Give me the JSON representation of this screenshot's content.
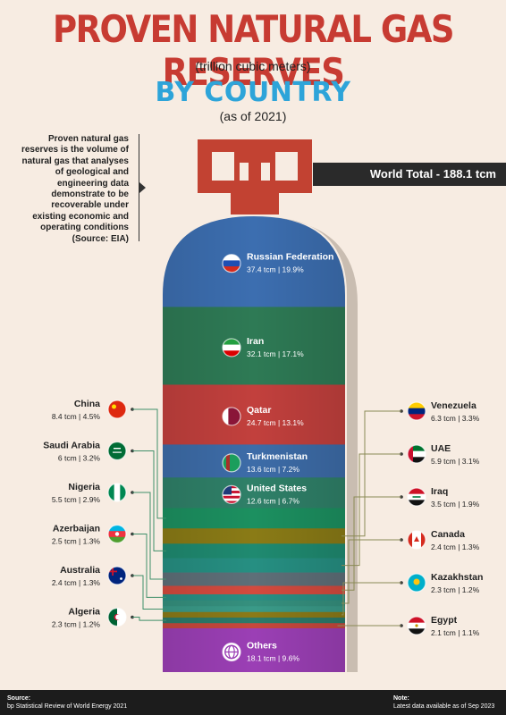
{
  "header": {
    "title": "PROVEN NATURAL GAS RESERVES",
    "unit": "(trillion cubic meters)",
    "subtitle": "BY COUNTRY",
    "date": "(as of 2021)"
  },
  "description": "Proven natural gas reserves is the volume of natural gas that analyses of geological and engineering data demonstrate to be recoverable under existing economic and operating conditions (Source: EIA)",
  "total_label": "World Total - 188.1 tcm",
  "footer": {
    "source_label": "Source:",
    "source_text": "bp Statistical Review of World Energy 2021",
    "note_label": "Note:",
    "note_text": "Latest data available as of Sep 2023"
  },
  "chart_data": {
    "type": "bar",
    "title": "PROVEN NATURAL GAS RESERVES",
    "unit": "trillion cubic meters",
    "total": 188.1,
    "segments": [
      {
        "name": "Russian Federation",
        "value": 37.4,
        "value_label": "37.4 tcm",
        "share": "19.9%",
        "color": "#3c6eb0",
        "label_side": "inside",
        "flag": "russia-flag-icon"
      },
      {
        "name": "Iran",
        "value": 32.1,
        "value_label": "32.1 tcm",
        "share": "17.1%",
        "color": "#2e7a55",
        "label_side": "inside",
        "flag": "iran-flag-icon"
      },
      {
        "name": "Qatar",
        "value": 24.7,
        "value_label": "24.7 tcm",
        "share": "13.1%",
        "color": "#c2403d",
        "label_side": "inside",
        "flag": "qatar-flag-icon"
      },
      {
        "name": "Turkmenistan",
        "value": 13.6,
        "value_label": "13.6 tcm",
        "share": "7.2%",
        "color": "#3d6ca8",
        "label_side": "inside",
        "flag": "turkmenistan-flag-icon"
      },
      {
        "name": "United States",
        "value": 12.6,
        "value_label": "12.6 tcm",
        "share": "6.7%",
        "color": "#2f8068",
        "label_side": "inside",
        "flag": "usa-flag-icon"
      },
      {
        "name": "China",
        "value": 8.4,
        "value_label": "8.4 tcm",
        "share": "4.5%",
        "color": "#1c9060",
        "label_side": "left",
        "flag": "china-flag-icon"
      },
      {
        "name": "Venezuela",
        "value": 6.3,
        "value_label": "6.3 tcm",
        "share": "3.3%",
        "color": "#8a7b16",
        "label_side": "right",
        "flag": "venezuela-flag-icon"
      },
      {
        "name": "Saudi Arabia",
        "value": 6.0,
        "value_label": "6 tcm",
        "share": "3.2%",
        "color": "#1f8a70",
        "label_side": "left",
        "flag": "saudi-arabia-flag-icon"
      },
      {
        "name": "UAE",
        "value": 5.9,
        "value_label": "5.9 tcm",
        "share": "3.1%",
        "color": "#268f82",
        "label_side": "right",
        "flag": "uae-flag-icon"
      },
      {
        "name": "Nigeria",
        "value": 5.5,
        "value_label": "5.5 tcm",
        "share": "2.9%",
        "color": "#5e6f78",
        "label_side": "left",
        "flag": "nigeria-flag-icon"
      },
      {
        "name": "Iraq",
        "value": 3.5,
        "value_label": "3.5 tcm",
        "share": "1.9%",
        "color": "#d44a3e",
        "label_side": "right",
        "flag": "iraq-flag-icon"
      },
      {
        "name": "Azerbaijan",
        "value": 2.5,
        "value_label": "2.5 tcm",
        "share": "1.3%",
        "color": "#2a8f84",
        "label_side": "left",
        "flag": "azerbaijan-flag-icon"
      },
      {
        "name": "Canada",
        "value": 2.4,
        "value_label": "2.4 tcm",
        "share": "1.3%",
        "color": "#35907e",
        "label_side": "right",
        "flag": "canada-flag-icon"
      },
      {
        "name": "Australia",
        "value": 2.4,
        "value_label": "2.4 tcm",
        "share": "1.3%",
        "color": "#3a9a88",
        "label_side": "left",
        "flag": "australia-flag-icon"
      },
      {
        "name": "Kazakhstan",
        "value": 2.3,
        "value_label": "2.3 tcm",
        "share": "1.2%",
        "color": "#8b7a18",
        "label_side": "right",
        "flag": "kazakhstan-flag-icon"
      },
      {
        "name": "Algeria",
        "value": 2.3,
        "value_label": "2.3 tcm",
        "share": "1.2%",
        "color": "#2c7a6a",
        "label_side": "left",
        "flag": "algeria-flag-icon"
      },
      {
        "name": "Egypt",
        "value": 2.1,
        "value_label": "2.1 tcm",
        "share": "1.1%",
        "color": "#c7483c",
        "label_side": "right",
        "flag": "egypt-flag-icon"
      },
      {
        "name": "Others",
        "value": 18.1,
        "value_label": "18.1 tcm",
        "share": "9.6%",
        "color": "#9b3fb5",
        "label_side": "inside",
        "flag": "globe-icon"
      }
    ]
  }
}
